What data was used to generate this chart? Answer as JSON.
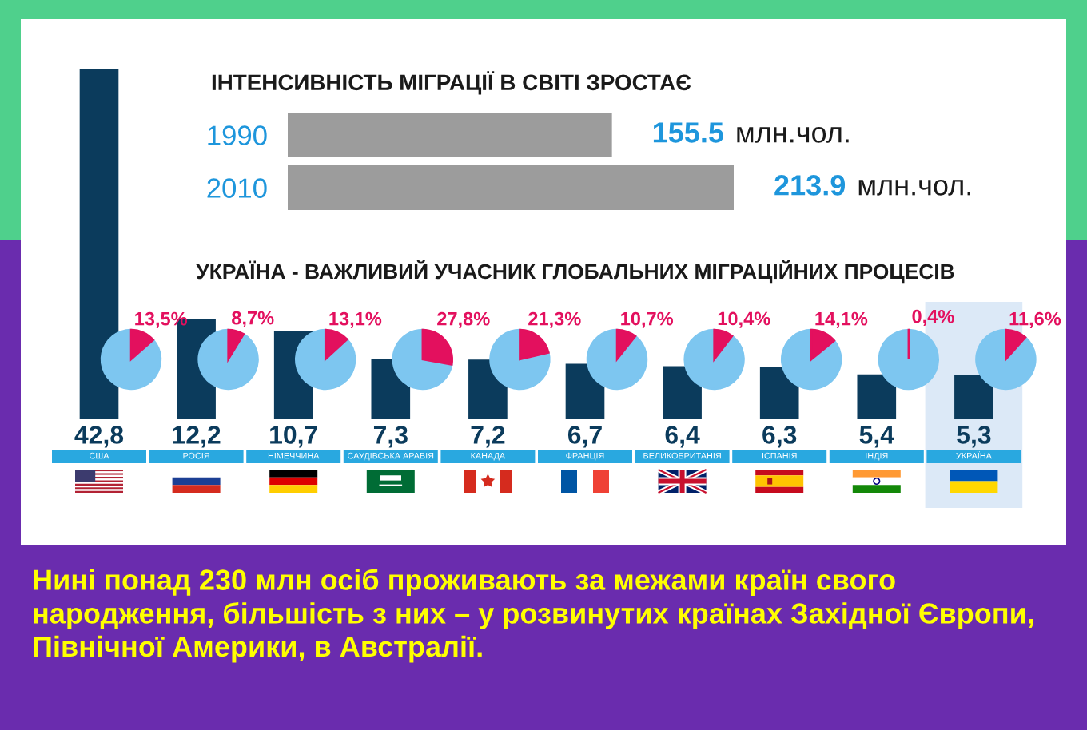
{
  "chart_data": [
    {
      "type": "bar",
      "orientation": "horizontal",
      "title": "ІНТЕНСИВНІСТЬ МІГРАЦІЇ В СВІТІ ЗРОСТАЄ",
      "categories": [
        "1990",
        "2010"
      ],
      "values": [
        155.5,
        213.9
      ],
      "value_labels": [
        "155.5 млн.чол.",
        "213.9 млн.чол."
      ],
      "color": "#9c9c9c",
      "tick_labels": "y"
    },
    {
      "type": "bar",
      "title": "УКРАЇНА - ВАЖЛИВИЙ УЧАСНИК ГЛОБАЛЬНИХ МІГРАЦІЙНИХ ПРОЦЕСІВ",
      "categories": [
        "США",
        "РОСІЯ",
        "НІМЕЧЧИНА",
        "САУДІВСЬКА АРАВІЯ",
        "КАНАДА",
        "ФРАНЦІЯ",
        "ВЕЛИКОБРИТАНІЯ",
        "ІСПАНІЯ",
        "ІНДІЯ",
        "УКРАЇНА"
      ],
      "values": [
        42.8,
        12.2,
        10.7,
        7.3,
        7.2,
        6.7,
        6.4,
        6.3,
        5.4,
        5.3
      ],
      "value_labels": [
        "42,8",
        "12,2",
        "10,7",
        "7,3",
        "7,2",
        "6,7",
        "6,4",
        "6,3",
        "5,4",
        "5,3"
      ],
      "color": "#0b3b5c",
      "tick_labels": "x",
      "bands": [
        {
          "axis": "x",
          "from": "УКРАЇНА",
          "to": "УКРАЇНА",
          "color": "#dce9f7"
        }
      ],
      "annotations": [
        "Нині понад 230 млн осіб проживають за межами країн свого народження, більшість з них – у розвинутих країнах Західної Європи, Північної Америки, в Австралії."
      ]
    },
    {
      "type": "pie",
      "categories": [
        null,
        null
      ],
      "values": [
        13.5,
        86.5
      ],
      "colors": [
        "#e3105e",
        "#7dc6f0"
      ],
      "value_labels": [
        "13,5%",
        null
      ]
    },
    {
      "type": "pie",
      "categories": [
        null,
        null
      ],
      "values": [
        8.7,
        91.3
      ],
      "colors": [
        "#e3105e",
        "#7dc6f0"
      ],
      "value_labels": [
        "8,7%",
        null
      ]
    },
    {
      "type": "pie",
      "categories": [
        null,
        null
      ],
      "values": [
        13.1,
        86.9
      ],
      "colors": [
        "#e3105e",
        "#7dc6f0"
      ],
      "value_labels": [
        "13,1%",
        null
      ]
    },
    {
      "type": "pie",
      "categories": [
        null,
        null
      ],
      "values": [
        27.8,
        72.2
      ],
      "colors": [
        "#e3105e",
        "#7dc6f0"
      ],
      "value_labels": [
        "27,8%",
        null
      ]
    },
    {
      "type": "pie",
      "categories": [
        null,
        null
      ],
      "values": [
        21.3,
        78.7
      ],
      "colors": [
        "#e3105e",
        "#7dc6f0"
      ],
      "value_labels": [
        "21,3%",
        null
      ]
    },
    {
      "type": "pie",
      "categories": [
        null,
        null
      ],
      "values": [
        10.7,
        89.3
      ],
      "colors": [
        "#e3105e",
        "#7dc6f0"
      ],
      "value_labels": [
        "10,7%",
        null
      ]
    },
    {
      "type": "pie",
      "categories": [
        null,
        null
      ],
      "values": [
        10.4,
        89.6
      ],
      "colors": [
        "#e3105e",
        "#7dc6f0"
      ],
      "value_labels": [
        "10,4%",
        null
      ]
    },
    {
      "type": "pie",
      "categories": [
        null,
        null
      ],
      "values": [
        14.1,
        85.9
      ],
      "colors": [
        "#e3105e",
        "#7dc6f0"
      ],
      "value_labels": [
        "14,1%",
        null
      ]
    },
    {
      "type": "pie",
      "categories": [
        null,
        null
      ],
      "values": [
        0.4,
        99.6
      ],
      "colors": [
        "#e3105e",
        "#7dc6f0"
      ],
      "value_labels": [
        "0,4%",
        null
      ]
    },
    {
      "type": "pie",
      "categories": [
        null,
        null
      ],
      "values": [
        11.6,
        88.4
      ],
      "colors": [
        "#e3105e",
        "#7dc6f0"
      ],
      "value_labels": [
        "11,6%",
        null
      ]
    }
  ]
}
